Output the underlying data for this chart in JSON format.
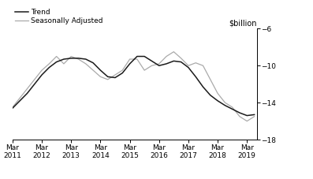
{
  "title": "",
  "ylabel": "$billion",
  "ylim": [
    -18,
    -6
  ],
  "yticks": [
    -6,
    -10,
    -14,
    -18
  ],
  "xlim": [
    2011.0,
    2019.33
  ],
  "background_color": "#ffffff",
  "trend_color": "#1a1a1a",
  "seasonal_color": "#aaaaaa",
  "trend_label": "Trend",
  "seasonal_label": "Seasonally Adjusted",
  "x_tick_years": [
    2011,
    2012,
    2013,
    2014,
    2015,
    2016,
    2017,
    2018,
    2019
  ],
  "trend_x": [
    2011.0,
    2011.25,
    2011.5,
    2011.75,
    2012.0,
    2012.25,
    2012.5,
    2012.75,
    2013.0,
    2013.25,
    2013.5,
    2013.75,
    2014.0,
    2014.25,
    2014.5,
    2014.75,
    2015.0,
    2015.25,
    2015.5,
    2015.75,
    2016.0,
    2016.25,
    2016.5,
    2016.75,
    2017.0,
    2017.25,
    2017.5,
    2017.75,
    2018.0,
    2018.25,
    2018.5,
    2018.75,
    2019.0,
    2019.25
  ],
  "trend_y": [
    -14.6,
    -13.8,
    -13.0,
    -12.0,
    -11.0,
    -10.2,
    -9.6,
    -9.3,
    -9.2,
    -9.2,
    -9.3,
    -9.7,
    -10.5,
    -11.2,
    -11.3,
    -10.8,
    -9.8,
    -9.0,
    -9.0,
    -9.5,
    -10.0,
    -9.8,
    -9.5,
    -9.6,
    -10.2,
    -11.2,
    -12.3,
    -13.2,
    -13.8,
    -14.3,
    -14.7,
    -15.1,
    -15.4,
    -15.3
  ],
  "seasonal_x": [
    2011.0,
    2011.25,
    2011.5,
    2011.75,
    2012.0,
    2012.25,
    2012.5,
    2012.75,
    2013.0,
    2013.25,
    2013.5,
    2013.75,
    2014.0,
    2014.25,
    2014.5,
    2014.75,
    2015.0,
    2015.25,
    2015.5,
    2015.75,
    2016.0,
    2016.25,
    2016.5,
    2016.75,
    2017.0,
    2017.25,
    2017.5,
    2017.75,
    2018.0,
    2018.25,
    2018.5,
    2018.75,
    2019.0,
    2019.25
  ],
  "seasonal_y": [
    -14.5,
    -13.5,
    -12.5,
    -11.5,
    -10.5,
    -9.8,
    -9.0,
    -9.8,
    -9.0,
    -9.3,
    -9.8,
    -10.5,
    -11.2,
    -11.5,
    -11.0,
    -10.5,
    -9.3,
    -9.3,
    -10.5,
    -10.0,
    -9.8,
    -9.0,
    -8.5,
    -9.2,
    -10.0,
    -9.7,
    -10.0,
    -11.5,
    -13.0,
    -14.0,
    -14.5,
    -15.5,
    -16.0,
    -15.5
  ],
  "legend_fontsize": 6.5,
  "tick_fontsize": 6.5,
  "ylabel_fontsize": 7
}
